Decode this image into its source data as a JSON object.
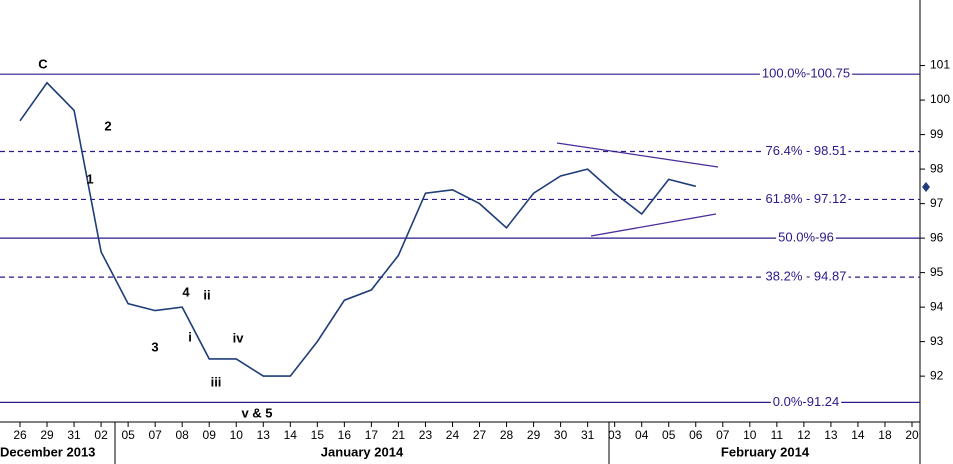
{
  "chart_data": {
    "type": "line",
    "categories": [
      "26",
      "29",
      "31",
      "02",
      "05",
      "07",
      "08",
      "09",
      "10",
      "13",
      "14",
      "15",
      "16",
      "17",
      "21",
      "23",
      "24",
      "27",
      "28",
      "29",
      "30",
      "31",
      "03",
      "04",
      "05",
      "06",
      "07",
      "10",
      "11",
      "12",
      "13",
      "14",
      "18",
      "20"
    ],
    "series": [
      {
        "color": "#1f3d7a",
        "values": [
          99.4,
          100.5,
          99.7,
          95.6,
          94.1,
          93.9,
          94.0,
          92.5,
          92.5,
          92.0,
          92.0,
          93.0,
          94.2,
          94.5,
          95.5,
          97.3,
          97.4,
          97.0,
          96.3,
          97.3,
          97.8,
          98.0,
          97.3,
          96.7,
          97.7,
          97.5,
          null,
          null,
          null,
          null,
          null,
          null,
          null,
          null
        ]
      }
    ],
    "months": [
      "December 2013",
      "January 2014",
      "February 2014"
    ],
    "ylim": [
      90.7,
      102.9
    ],
    "yticks": [
      92,
      93,
      94,
      95,
      96,
      97,
      98,
      99,
      100,
      101
    ],
    "levels": [
      {
        "label": "100.0%-100.75",
        "value": 100.75,
        "dashed": false
      },
      {
        "label": "76.4% - 98.51",
        "value": 98.51,
        "dashed": true
      },
      {
        "label": "61.8% - 97.12",
        "value": 97.12,
        "dashed": true
      },
      {
        "label": "50.0%-96",
        "value": 96,
        "dashed": false
      },
      {
        "label": "38.2% - 94.87",
        "value": 94.87,
        "dashed": true
      },
      {
        "label": "0.0%-91.24",
        "value": 91.24,
        "dashed": false
      }
    ],
    "level_color": "#2a1a8a",
    "annotations": [
      "C",
      "2",
      "1",
      "3",
      "4",
      "ii",
      "i",
      "iv",
      "iii",
      "v & 5"
    ]
  }
}
